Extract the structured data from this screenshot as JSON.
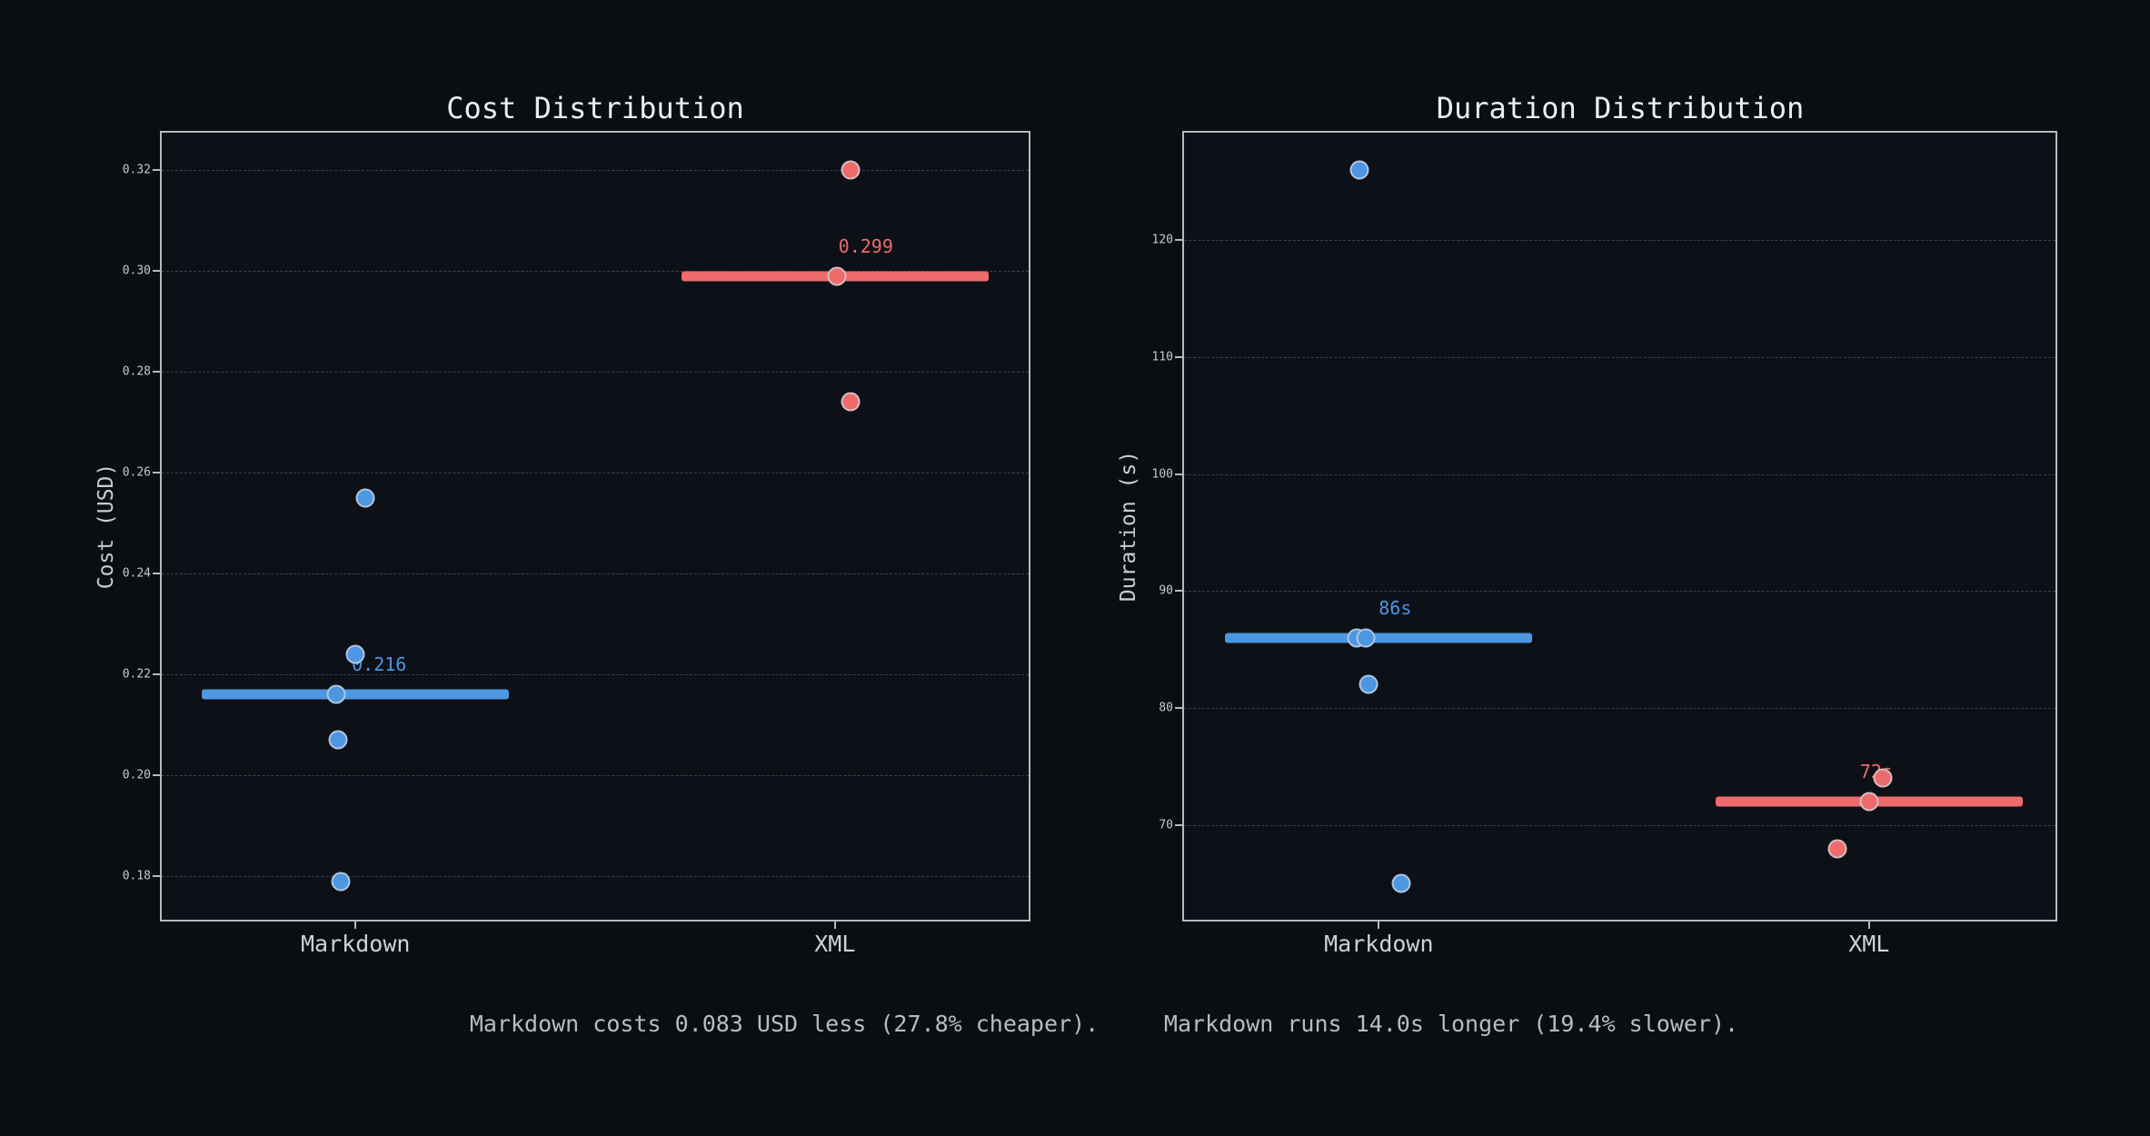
{
  "figure": {
    "background": "#0a0d12",
    "plot_background": "#0d1117",
    "spine_color": "#b6babf",
    "blue": "#4d96e2",
    "red": "#ed6b6b"
  },
  "captions": [
    "Markdown costs 0.083 USD less (27.8% cheaper).",
    "Markdown runs 14.0s longer (19.4% slower)."
  ],
  "chart_data": [
    {
      "type": "scatter",
      "title": "Cost Distribution",
      "ylabel": "Cost (USD)",
      "categories": [
        "Markdown",
        "XML"
      ],
      "ylim": [
        0.1714,
        0.3274
      ],
      "grid": "dashed-horizontal",
      "legend": "none",
      "yticks": [
        {
          "v": 0.18,
          "label": "0.18"
        },
        {
          "v": 0.2,
          "label": "0.20"
        },
        {
          "v": 0.22,
          "label": "0.22"
        },
        {
          "v": 0.24,
          "label": "0.24"
        },
        {
          "v": 0.26,
          "label": "0.26"
        },
        {
          "v": 0.28,
          "label": "0.28"
        },
        {
          "v": 0.3,
          "label": "0.30"
        },
        {
          "v": 0.32,
          "label": "0.32"
        }
      ],
      "series": [
        {
          "name": "Markdown",
          "color": "#4d96e2",
          "median": 0.216,
          "median_label": "0.216",
          "median_label_dx": 26,
          "points": [
            {
              "y": 0.255,
              "dx": 11
            },
            {
              "y": 0.224,
              "dx": 0
            },
            {
              "y": 0.216,
              "dx": -21
            },
            {
              "y": 0.207,
              "dx": -19
            },
            {
              "y": 0.179,
              "dx": -16
            }
          ]
        },
        {
          "name": "XML",
          "color": "#ed6b6b",
          "median": 0.299,
          "median_label": "0.299",
          "median_label_dx": 34,
          "points": [
            {
              "y": 0.32,
              "dx": 17
            },
            {
              "y": 0.299,
              "dx": 2
            },
            {
              "y": 0.274,
              "dx": 17
            }
          ]
        }
      ]
    },
    {
      "type": "scatter",
      "title": "Duration Distribution",
      "ylabel": "Duration (s)",
      "categories": [
        "Markdown",
        "XML"
      ],
      "ylim": [
        61.9,
        129.2
      ],
      "grid": "dashed-horizontal",
      "legend": "none",
      "yticks": [
        {
          "v": 70,
          "label": "70"
        },
        {
          "v": 80,
          "label": "80"
        },
        {
          "v": 90,
          "label": "90"
        },
        {
          "v": 100,
          "label": "100"
        },
        {
          "v": 110,
          "label": "110"
        },
        {
          "v": 120,
          "label": "120"
        }
      ],
      "series": [
        {
          "name": "Markdown",
          "color": "#4d96e2",
          "median": 86,
          "median_label": "86s",
          "median_label_dx": 18,
          "points": [
            {
              "y": 126,
              "dx": -21
            },
            {
              "y": 86,
              "dx": -24
            },
            {
              "y": 86,
              "dx": -14
            },
            {
              "y": 82,
              "dx": -11
            },
            {
              "y": 65,
              "dx": 25
            }
          ]
        },
        {
          "name": "XML",
          "color": "#ed6b6b",
          "median": 72,
          "median_label": "72s",
          "median_label_dx": 8,
          "points": [
            {
              "y": 74,
              "dx": 15
            },
            {
              "y": 72,
              "dx": 0
            },
            {
              "y": 68,
              "dx": -35
            }
          ]
        }
      ]
    }
  ]
}
